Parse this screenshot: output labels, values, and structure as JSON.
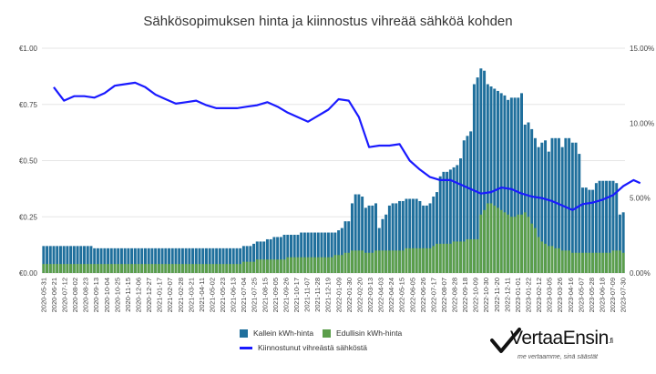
{
  "chart_data": {
    "type": "bar",
    "title": "Sähkösopimuksen hinta ja kiinnostus vihreää sähköä kohden",
    "left_axis": {
      "ticks": [
        "€0.00",
        "€0.25",
        "€0.50",
        "€0.75",
        "€1.00"
      ],
      "min": 0,
      "max": 1
    },
    "right_axis": {
      "ticks": [
        "0.00%",
        "5.00%",
        "10.00%",
        "15.00%"
      ],
      "min": 0,
      "max": 15
    },
    "x_tick_labels": [
      "2020-05-31",
      "2020-06-21",
      "2020-07-12",
      "2020-08-02",
      "2020-08-23",
      "2020-09-13",
      "2020-10-04",
      "2020-10-25",
      "2020-11-15",
      "2020-12-06",
      "2020-12-27",
      "2021-01-17",
      "2021-02-07",
      "2021-02-28",
      "2021-03-21",
      "2021-04-11",
      "2021-05-02",
      "2021-05-23",
      "2021-06-13",
      "2021-07-04",
      "2021-07-25",
      "2021-08-15",
      "2021-09-05",
      "2021-09-26",
      "2021-10-17",
      "2021-11-07",
      "2021-11-28",
      "2021-12-19",
      "2022-01-09",
      "2022-01-30",
      "2022-02-20",
      "2022-03-13",
      "2022-04-03",
      "2022-04-24",
      "2022-05-15",
      "2022-06-05",
      "2022-06-26",
      "2022-07-17",
      "2022-08-07",
      "2022-08-28",
      "2022-09-18",
      "2022-10-09",
      "2022-10-30",
      "2022-11-20",
      "2022-12-11",
      "2023-01-01",
      "2023-01-22",
      "2023-02-12",
      "2023-03-05",
      "2023-03-26",
      "2023-04-16",
      "2023-05-07",
      "2023-05-28",
      "2023-06-18",
      "2023-07-09",
      "2023-07-30"
    ],
    "series": [
      {
        "name": "Kallein kWh-hinta",
        "color": "#1f6f9c",
        "values": [
          0.12,
          0.12,
          0.12,
          0.12,
          0.12,
          0.12,
          0.12,
          0.12,
          0.12,
          0.12,
          0.12,
          0.12,
          0.12,
          0.12,
          0.12,
          0.11,
          0.11,
          0.11,
          0.11,
          0.11,
          0.11,
          0.11,
          0.11,
          0.11,
          0.11,
          0.11,
          0.11,
          0.11,
          0.11,
          0.11,
          0.11,
          0.11,
          0.11,
          0.11,
          0.11,
          0.11,
          0.11,
          0.11,
          0.11,
          0.11,
          0.11,
          0.11,
          0.11,
          0.11,
          0.11,
          0.11,
          0.11,
          0.11,
          0.11,
          0.11,
          0.11,
          0.11,
          0.11,
          0.11,
          0.11,
          0.11,
          0.11,
          0.11,
          0.11,
          0.12,
          0.12,
          0.12,
          0.13,
          0.14,
          0.14,
          0.14,
          0.15,
          0.15,
          0.16,
          0.16,
          0.16,
          0.17,
          0.17,
          0.17,
          0.17,
          0.17,
          0.18,
          0.18,
          0.18,
          0.18,
          0.18,
          0.18,
          0.18,
          0.18,
          0.18,
          0.18,
          0.18,
          0.19,
          0.2,
          0.23,
          0.23,
          0.31,
          0.35,
          0.35,
          0.34,
          0.29,
          0.3,
          0.3,
          0.31,
          0.2,
          0.24,
          0.26,
          0.3,
          0.31,
          0.31,
          0.32,
          0.32,
          0.33,
          0.33,
          0.33,
          0.33,
          0.32,
          0.3,
          0.3,
          0.31,
          0.34,
          0.36,
          0.43,
          0.45,
          0.45,
          0.46,
          0.47,
          0.48,
          0.51,
          0.59,
          0.61,
          0.63,
          0.84,
          0.87,
          0.91,
          0.9,
          0.84,
          0.83,
          0.82,
          0.81,
          0.8,
          0.79,
          0.77,
          0.78,
          0.78,
          0.78,
          0.8,
          0.66,
          0.67,
          0.64,
          0.6,
          0.56,
          0.58,
          0.59,
          0.54,
          0.6,
          0.6,
          0.6,
          0.56,
          0.6,
          0.6,
          0.58,
          0.58,
          0.53,
          0.38,
          0.38,
          0.37,
          0.37,
          0.4,
          0.41,
          0.41,
          0.41,
          0.41,
          0.41,
          0.4,
          0.26,
          0.27
        ]
      },
      {
        "name": "Edullisin kWh-hinta",
        "color": "#5b9e4a",
        "values": [
          0.04,
          0.04,
          0.04,
          0.04,
          0.04,
          0.04,
          0.04,
          0.04,
          0.04,
          0.04,
          0.04,
          0.04,
          0.04,
          0.04,
          0.04,
          0.04,
          0.04,
          0.04,
          0.04,
          0.04,
          0.04,
          0.04,
          0.04,
          0.04,
          0.04,
          0.04,
          0.04,
          0.04,
          0.04,
          0.04,
          0.04,
          0.04,
          0.04,
          0.04,
          0.04,
          0.04,
          0.04,
          0.04,
          0.04,
          0.04,
          0.04,
          0.04,
          0.04,
          0.04,
          0.04,
          0.04,
          0.04,
          0.04,
          0.04,
          0.04,
          0.04,
          0.04,
          0.04,
          0.04,
          0.04,
          0.04,
          0.04,
          0.04,
          0.04,
          0.05,
          0.05,
          0.05,
          0.05,
          0.06,
          0.06,
          0.06,
          0.06,
          0.06,
          0.06,
          0.06,
          0.06,
          0.06,
          0.07,
          0.07,
          0.07,
          0.07,
          0.07,
          0.07,
          0.07,
          0.07,
          0.07,
          0.07,
          0.07,
          0.07,
          0.07,
          0.07,
          0.08,
          0.08,
          0.08,
          0.09,
          0.09,
          0.1,
          0.1,
          0.1,
          0.1,
          0.09,
          0.09,
          0.09,
          0.1,
          0.1,
          0.1,
          0.1,
          0.1,
          0.1,
          0.1,
          0.1,
          0.1,
          0.11,
          0.11,
          0.11,
          0.11,
          0.11,
          0.11,
          0.11,
          0.11,
          0.12,
          0.13,
          0.13,
          0.13,
          0.13,
          0.13,
          0.14,
          0.14,
          0.14,
          0.14,
          0.15,
          0.15,
          0.15,
          0.15,
          0.26,
          0.28,
          0.31,
          0.31,
          0.3,
          0.29,
          0.28,
          0.27,
          0.26,
          0.25,
          0.25,
          0.26,
          0.26,
          0.27,
          0.25,
          0.22,
          0.2,
          0.16,
          0.14,
          0.13,
          0.12,
          0.12,
          0.11,
          0.11,
          0.1,
          0.1,
          0.1,
          0.09,
          0.09,
          0.09,
          0.09,
          0.09,
          0.09,
          0.09,
          0.09,
          0.09,
          0.09,
          0.09,
          0.09,
          0.1,
          0.1,
          0.1,
          0.09,
          0.09,
          0.09,
          0.08,
          0.08
        ]
      },
      {
        "name": "Kiinnostunut vihreästä sähköstä",
        "color": "#1a1aff",
        "axis": "right",
        "line_x_index": [
          3,
          6,
          9,
          12,
          15,
          18,
          21,
          24,
          27,
          30,
          33,
          36,
          39,
          42,
          45,
          48,
          51,
          54,
          57,
          60,
          63,
          66,
          69,
          72,
          75,
          78,
          81,
          84,
          87,
          90,
          93,
          96,
          99,
          102,
          105,
          108,
          111,
          114,
          117,
          120,
          123,
          126,
          129,
          132,
          135,
          138,
          141,
          144,
          147,
          150,
          153,
          156,
          159,
          162,
          165,
          168,
          171,
          174,
          176
        ],
        "values": [
          12.4,
          11.5,
          11.8,
          11.8,
          11.7,
          12.0,
          12.5,
          12.6,
          12.7,
          12.4,
          11.9,
          11.6,
          11.3,
          11.4,
          11.5,
          11.2,
          11.0,
          11.0,
          11.0,
          11.1,
          11.2,
          11.4,
          11.1,
          10.7,
          10.4,
          10.1,
          10.5,
          10.9,
          11.6,
          11.5,
          10.4,
          8.4,
          8.5,
          8.5,
          8.6,
          7.5,
          6.9,
          6.4,
          6.2,
          6.2,
          5.9,
          5.6,
          5.3,
          5.4,
          5.7,
          5.6,
          5.3,
          5.1,
          5.0,
          4.8,
          4.5,
          4.2,
          4.6,
          4.7,
          4.9,
          5.2,
          5.8,
          6.2,
          6.0
        ]
      }
    ],
    "legend": {
      "items": [
        "Kallein kWh-hinta",
        "Edullisin kWh-hinta",
        "Kiinnostunut vihreästä sähköstä"
      ],
      "placement": "bottom-center"
    },
    "grid": true
  },
  "branding": {
    "logo_text": "VertaaEnsin",
    "logo_suffix": ".fi",
    "tagline": "me vertaamme, sinä säästät"
  }
}
